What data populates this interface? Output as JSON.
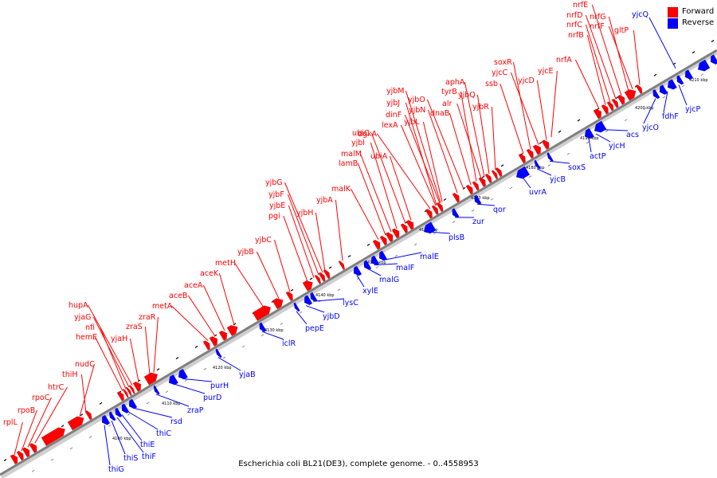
{
  "colors": {
    "forward": "#ff0000",
    "reverse": "#0000ff",
    "axis": "#808080",
    "leader_forward": "#ff0000",
    "leader_reverse": "#0000ff"
  },
  "legend": [
    {
      "label": "Forward",
      "color": "#ff0000"
    },
    {
      "label": "Reverse",
      "color": "#0000ff"
    }
  ],
  "caption": "Escherichia coli BL21(DE3), complete genome. - 0..4558953",
  "axis_ticks": [
    "4100 kbp",
    "4110 kbp",
    "4120 kbp",
    "4130 kbp",
    "4140 kbp",
    "4150 kbp",
    "4160 kbp",
    "4170 kbp",
    "4180 kbp",
    "4190 kbp",
    "4200 kbp",
    "4210 kbp"
  ],
  "forward_genes": [
    "rplL",
    "rpoB",
    "rpoC",
    "htrC",
    "nudC",
    "thiH",
    "hemE",
    "nfi",
    "yjaG",
    "hupA",
    "yjaH",
    "zraS",
    "zraR",
    "metA",
    "aceB",
    "aceA",
    "aceK",
    "metH",
    "yjbB",
    "yjbC",
    "pgi",
    "yjbE",
    "yjbF",
    "yjbG",
    "yjbH",
    "yjbA",
    "malK",
    "lamB",
    "malM",
    "yjbI",
    "ubiC",
    "ubiA",
    "dgkA",
    "lexA",
    "dinF",
    "yjbJ",
    "yjbM",
    "yjbL",
    "yjbN",
    "yjbO",
    "dnaB",
    "alr",
    "tyrB",
    "aphA",
    "yjbQ",
    "yjbR",
    "ssb",
    "soxR",
    "yjcC",
    "yjcD",
    "yjcE",
    "nrfA",
    "nrfB",
    "nrfC",
    "nrfD",
    "nrfE",
    "nrfF",
    "nrfG",
    "gltP"
  ],
  "reverse_genes": [
    "thiG",
    "thiS",
    "thiF",
    "thiE",
    "thiC",
    "rsd",
    "zraP",
    "purD",
    "purH",
    "yjaB",
    "iclR",
    "pepE",
    "yjbD",
    "lysC",
    "xylE",
    "malG",
    "malF",
    "malE",
    "plsB",
    "zur",
    "qor",
    "uvrA",
    "yjcB",
    "soxS",
    "actP",
    "yjcH",
    "acs",
    "yjcO",
    "fdhF",
    "yjcP",
    "yjcQ"
  ]
}
